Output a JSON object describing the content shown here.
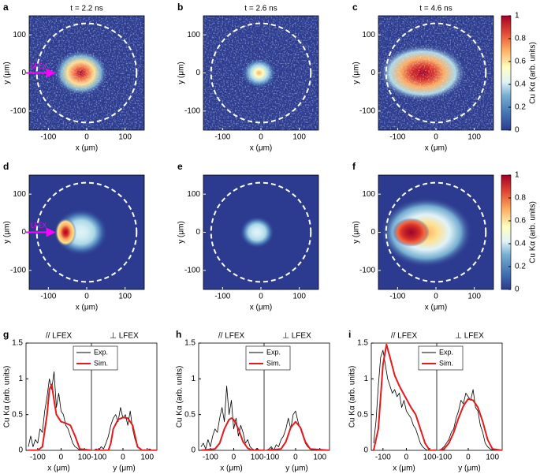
{
  "chart_data": [
    {
      "type": "heatmap",
      "label": "a",
      "title": "t = 2.2 ns",
      "xlabel": "x (μm)",
      "ylabel": "y (μm)",
      "xlim": [
        -150,
        150
      ],
      "ylim": [
        -150,
        150
      ],
      "xticks": [
        -100,
        0,
        100
      ],
      "yticks": [
        -100,
        0,
        100
      ],
      "annotation": "LFEX"
    },
    {
      "type": "heatmap",
      "label": "b",
      "title": "t = 2.6 ns",
      "xlabel": "x (μm)",
      "ylabel": "y (μm)",
      "xlim": [
        -150,
        150
      ],
      "ylim": [
        -150,
        150
      ],
      "xticks": [
        -100,
        0,
        100
      ],
      "yticks": [
        -100,
        0,
        100
      ]
    },
    {
      "type": "heatmap",
      "label": "c",
      "title": "t = 4.6 ns",
      "xlabel": "x (μm)",
      "ylabel": "y (μm)",
      "xlim": [
        -150,
        150
      ],
      "ylim": [
        -150,
        150
      ],
      "xticks": [
        -100,
        0,
        100
      ],
      "yticks": [
        -100,
        0,
        100
      ],
      "colorbar": {
        "label": "Cu Kα (arb. units)",
        "lim": [
          0,
          1
        ],
        "ticks": [
          0,
          0.2,
          0.4,
          0.6,
          0.8,
          1
        ]
      }
    },
    {
      "type": "heatmap",
      "label": "d",
      "xlabel": "x (μm)",
      "ylabel": "y (μm)",
      "xlim": [
        -150,
        150
      ],
      "ylim": [
        -150,
        150
      ],
      "xticks": [
        -100,
        0,
        100
      ],
      "yticks": [
        -100,
        0,
        100
      ],
      "annotation": "LFEX"
    },
    {
      "type": "heatmap",
      "label": "e",
      "xlabel": "x (μm)",
      "ylabel": "y (μm)",
      "xlim": [
        -150,
        150
      ],
      "ylim": [
        -150,
        150
      ],
      "xticks": [
        -100,
        0,
        100
      ],
      "yticks": [
        -100,
        0,
        100
      ]
    },
    {
      "type": "heatmap",
      "label": "f",
      "xlabel": "x (μm)",
      "ylabel": "y (μm)",
      "xlim": [
        -150,
        150
      ],
      "ylim": [
        -150,
        150
      ],
      "xticks": [
        -100,
        0,
        100
      ],
      "yticks": [
        -100,
        0,
        100
      ],
      "colorbar": {
        "label": "Cu Kα (arb. units)",
        "lim": [
          0,
          1
        ],
        "ticks": [
          0,
          0.2,
          0.4,
          0.6,
          0.8,
          1
        ]
      }
    },
    {
      "type": "line",
      "label": "g",
      "ylabel": "Cu Kα (arb. units)",
      "ylim": [
        0,
        1.5
      ],
      "yticks": [
        0,
        0.5,
        1,
        1.5
      ],
      "panels": [
        {
          "title": "// LFEX",
          "xlabel": "x (μm)",
          "xlim": [
            -150,
            130
          ],
          "xticks": [
            -100,
            0,
            100
          ]
        },
        {
          "title": "⊥ LFEX",
          "xlabel": "y (μm)",
          "xlim": [
            -130,
            140
          ],
          "xticks": [
            -100,
            0,
            100
          ]
        }
      ],
      "series": [
        {
          "name": "Exp.",
          "color": "#000000",
          "halves": [
            {
              "x": [
                -140,
                -130,
                -120,
                -110,
                -100,
                -90,
                -80,
                -70,
                -60,
                -50,
                -40,
                -30,
                -20,
                -10,
                0,
                10,
                20,
                30,
                40,
                50,
                60,
                70,
                80,
                90,
                100,
                110,
                120
              ],
              "values": [
                0.05,
                0.2,
                0.05,
                0.15,
                0.1,
                0.3,
                0.25,
                0.55,
                0.75,
                1.0,
                0.85,
                1.1,
                0.6,
                0.8,
                0.55,
                0.5,
                0.35,
                0.3,
                0.2,
                0.1,
                0.05,
                0.03,
                0,
                0.02,
                0,
                0.01,
                0
              ]
            },
            {
              "x": [
                -120,
                -110,
                -100,
                -90,
                -80,
                -70,
                -60,
                -50,
                -40,
                -30,
                -20,
                -10,
                0,
                10,
                20,
                30,
                40,
                50,
                60,
                70,
                80,
                90,
                100,
                110,
                120,
                130
              ],
              "values": [
                0,
                0.02,
                0,
                0.05,
                0.02,
                0.1,
                0.2,
                0.35,
                0.45,
                0.5,
                0.4,
                0.6,
                0.45,
                0.5,
                0.35,
                0.55,
                0.3,
                0.15,
                0.05,
                0.02,
                0,
                0.01,
                0,
                0.02,
                0,
                0
              ]
            }
          ]
        },
        {
          "name": "Sim.",
          "color": "#e41a1c",
          "halves": [
            {
              "x": [
                -140,
                -100,
                -80,
                -60,
                -50,
                -40,
                -30,
                -20,
                0,
                20,
                40,
                60,
                80,
                130
              ],
              "values": [
                0,
                0,
                0.05,
                0.5,
                0.85,
                0.92,
                0.7,
                0.5,
                0.4,
                0.38,
                0.35,
                0.2,
                0.02,
                0
              ]
            },
            {
              "x": [
                -120,
                -60,
                -50,
                -40,
                -20,
                0,
                20,
                40,
                50,
                60,
                80,
                140
              ],
              "values": [
                0,
                0,
                0.1,
                0.3,
                0.43,
                0.46,
                0.45,
                0.35,
                0.2,
                0.05,
                0,
                0
              ]
            }
          ]
        }
      ]
    },
    {
      "type": "line",
      "label": "h",
      "ylabel": "Cu Kα (arb. units)",
      "ylim": [
        0,
        1.5
      ],
      "yticks": [
        0,
        0.5,
        1,
        1.5
      ],
      "panels": [
        {
          "title": "// LFEX",
          "xlabel": "x (μm)",
          "xlim": [
            -150,
            130
          ],
          "xticks": [
            -100,
            0,
            100
          ]
        },
        {
          "title": "⊥ LFEX",
          "xlabel": "y (μm)",
          "xlim": [
            -130,
            140
          ],
          "xticks": [
            -100,
            0,
            100
          ]
        }
      ],
      "series": [
        {
          "name": "Exp.",
          "color": "#000000",
          "halves": [
            {
              "x": [
                -140,
                -130,
                -120,
                -110,
                -100,
                -90,
                -80,
                -70,
                -60,
                -50,
                -40,
                -30,
                -20,
                -10,
                0,
                10,
                20,
                30,
                40,
                50,
                60,
                70,
                80,
                90,
                100,
                110,
                120
              ],
              "values": [
                0.05,
                0.1,
                0.02,
                0.15,
                0.05,
                0.2,
                0.3,
                0.25,
                0.45,
                0.6,
                0.4,
                0.9,
                0.5,
                0.7,
                0.3,
                0.45,
                0.2,
                0.35,
                0.25,
                0.1,
                0.15,
                0.05,
                0.02,
                0,
                0.03,
                0,
                0
              ]
            },
            {
              "x": [
                -120,
                -110,
                -100,
                -90,
                -80,
                -70,
                -60,
                -50,
                -40,
                -30,
                -20,
                -10,
                0,
                10,
                20,
                30,
                40,
                50,
                60,
                70,
                80,
                90,
                100,
                110,
                120,
                130
              ],
              "values": [
                0,
                0.02,
                0.05,
                0,
                0.08,
                0.05,
                0.15,
                0.2,
                0.3,
                0.45,
                0.3,
                0.5,
                0.55,
                0.4,
                0.3,
                0.2,
                0.1,
                0.05,
                0.02,
                0,
                0.01,
                0,
                0.02,
                0,
                0,
                0
              ]
            }
          ]
        },
        {
          "name": "Sim.",
          "color": "#e41a1c",
          "halves": [
            {
              "x": [
                -140,
                -80,
                -60,
                -40,
                -20,
                -10,
                0,
                20,
                40,
                60,
                80,
                130
              ],
              "values": [
                0,
                0.02,
                0.1,
                0.3,
                0.43,
                0.45,
                0.43,
                0.3,
                0.12,
                0.03,
                0,
                0
              ]
            },
            {
              "x": [
                -120,
                -60,
                -40,
                -20,
                0,
                20,
                40,
                60,
                140
              ],
              "values": [
                0,
                0.02,
                0.12,
                0.32,
                0.4,
                0.32,
                0.12,
                0.02,
                0
              ]
            }
          ]
        }
      ]
    },
    {
      "type": "line",
      "label": "i",
      "ylabel": "Cu Kα (arb. units)",
      "ylim": [
        0,
        1.5
      ],
      "yticks": [
        0,
        0.5,
        1,
        1.5
      ],
      "panels": [
        {
          "title": "// LFEX",
          "xlabel": "x (μm)",
          "xlim": [
            -150,
            130
          ],
          "xticks": [
            -100,
            0,
            100
          ]
        },
        {
          "title": "⊥ LFEX",
          "xlabel": "y (μm)",
          "xlim": [
            -130,
            140
          ],
          "xticks": [
            -100,
            0,
            100
          ]
        }
      ],
      "series": [
        {
          "name": "Exp.",
          "color": "#000000",
          "halves": [
            {
              "x": [
                -140,
                -130,
                -120,
                -110,
                -100,
                -90,
                -80,
                -70,
                -60,
                -50,
                -40,
                -30,
                -20,
                -10,
                0,
                10,
                20,
                30,
                40,
                50,
                60,
                70,
                80,
                90,
                100,
                110,
                120
              ],
              "values": [
                0.1,
                0.4,
                0.9,
                1.3,
                1.4,
                1.2,
                1.0,
                0.9,
                0.8,
                0.85,
                0.75,
                0.8,
                0.6,
                0.7,
                0.55,
                0.5,
                0.45,
                0.35,
                0.3,
                0.2,
                0.1,
                0.05,
                0.02,
                0,
                0.01,
                0,
                0
              ]
            },
            {
              "x": [
                -120,
                -110,
                -100,
                -90,
                -80,
                -70,
                -60,
                -50,
                -40,
                -30,
                -20,
                -10,
                0,
                10,
                20,
                30,
                40,
                50,
                60,
                70,
                80,
                90,
                100,
                110,
                120,
                130
              ],
              "values": [
                0,
                0.02,
                0.05,
                0.1,
                0.15,
                0.25,
                0.3,
                0.45,
                0.55,
                0.7,
                0.65,
                0.8,
                0.75,
                0.7,
                0.85,
                0.6,
                0.55,
                0.35,
                0.25,
                0.1,
                0.05,
                0.02,
                0,
                0.01,
                0,
                0
              ]
            }
          ]
        },
        {
          "name": "Sim.",
          "color": "#e41a1c",
          "halves": [
            {
              "x": [
                -140,
                -120,
                -100,
                -85,
                -70,
                -50,
                -30,
                0,
                20,
                40,
                60,
                80,
                100,
                130
              ],
              "values": [
                0,
                0.3,
                1.2,
                1.48,
                1.3,
                1.05,
                0.9,
                0.72,
                0.6,
                0.5,
                0.3,
                0.1,
                0,
                0
              ]
            },
            {
              "x": [
                -120,
                -100,
                -80,
                -60,
                -40,
                -20,
                0,
                20,
                40,
                60,
                80,
                100,
                140
              ],
              "values": [
                0,
                0.02,
                0.1,
                0.25,
                0.45,
                0.62,
                0.72,
                0.7,
                0.6,
                0.4,
                0.15,
                0.02,
                0
              ]
            }
          ]
        }
      ]
    }
  ]
}
